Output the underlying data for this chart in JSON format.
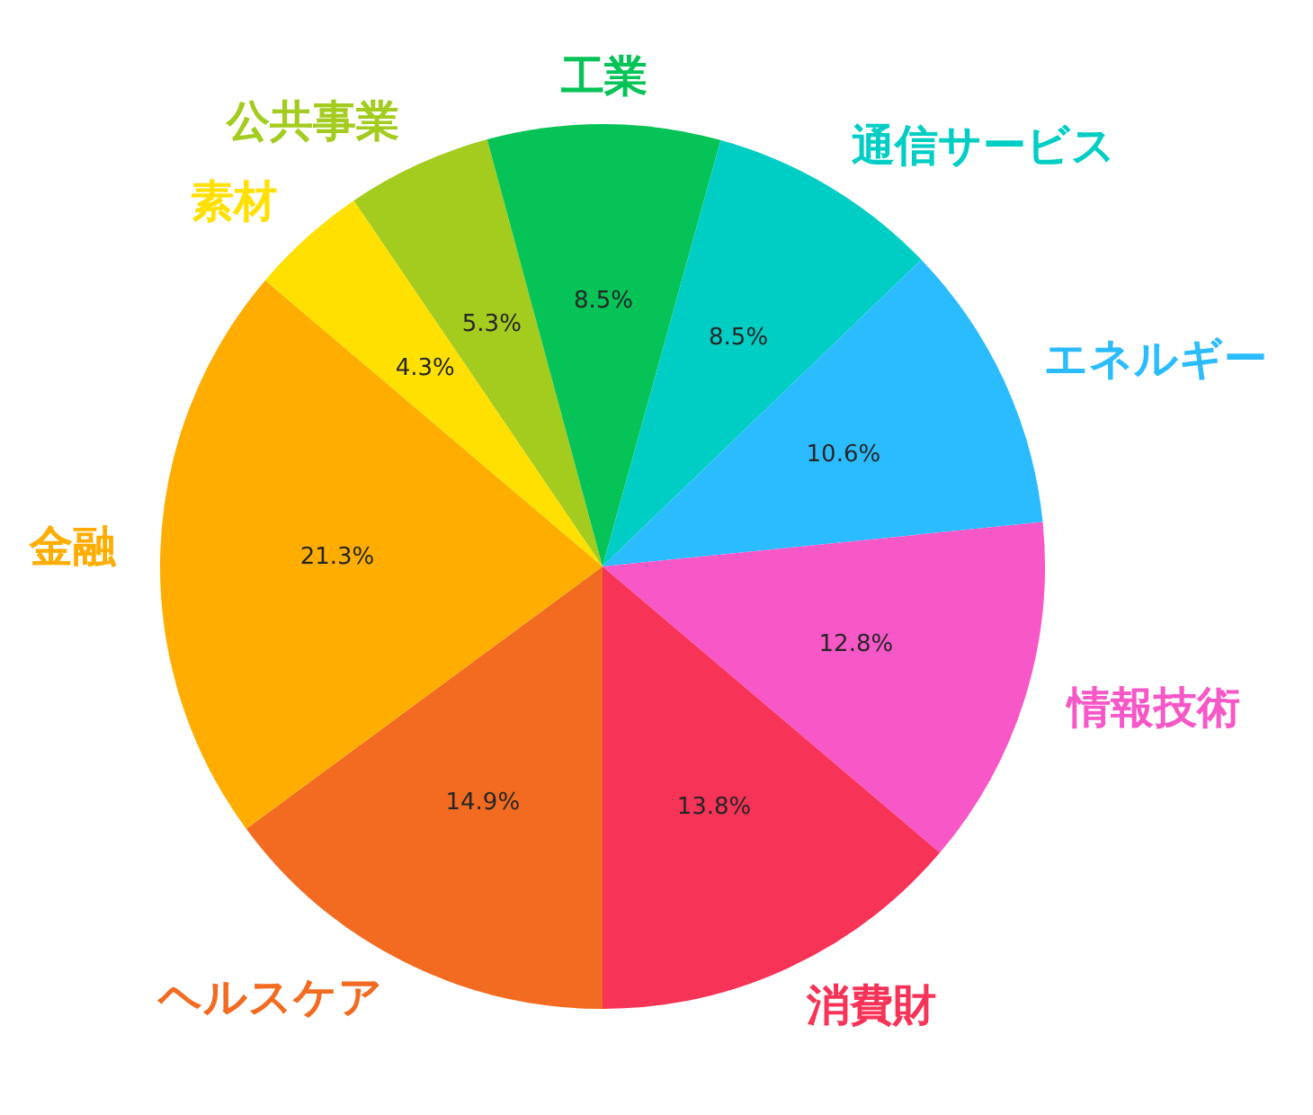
{
  "chart_data": {
    "type": "pie",
    "categories": [
      "ヘルスケア",
      "金融",
      "素材",
      "公共事業",
      "工業",
      "通信サービス",
      "エネルギー",
      "情報技術",
      "消費財"
    ],
    "values": [
      14.9,
      21.3,
      4.3,
      5.3,
      8.5,
      8.5,
      10.6,
      12.8,
      13.8
    ],
    "value_labels": [
      "14.9%",
      "21.3%",
      "4.3%",
      "5.3%",
      "8.5%",
      "8.5%",
      "10.6%",
      "12.8%",
      "13.8%"
    ],
    "colors": [
      "#f26b21",
      "#ffad00",
      "#ffe000",
      "#a3cc1e",
      "#05c356",
      "#00cec5",
      "#2bbcff",
      "#f857c8",
      "#f73357"
    ],
    "legend": false
  }
}
